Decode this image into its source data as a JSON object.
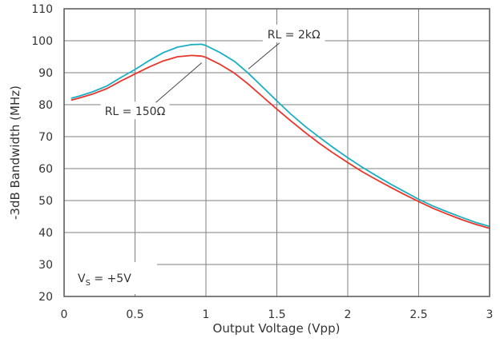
{
  "chart_data": {
    "type": "line",
    "title": "",
    "xlabel": "Output Voltage (Vpp)",
    "ylabel": "-3dB Bandwidth (MHz)",
    "xlim": [
      0,
      3
    ],
    "ylim": [
      20,
      110
    ],
    "xticks": [
      0,
      0.5,
      1,
      1.5,
      2,
      2.5,
      3
    ],
    "xtick_labels": [
      "0",
      "0.5",
      "1",
      "1.5",
      "2",
      "2.5",
      "3"
    ],
    "yticks": [
      20,
      30,
      40,
      50,
      60,
      70,
      80,
      90,
      100,
      110
    ],
    "ytick_labels": [
      "20",
      "30",
      "40",
      "50",
      "60",
      "70",
      "80",
      "90",
      "100",
      "110"
    ],
    "grid": true,
    "series": [
      {
        "name": "RL = 2kΩ",
        "color": "#1aaec2",
        "x": [
          0.05,
          0.1,
          0.2,
          0.3,
          0.4,
          0.5,
          0.6,
          0.7,
          0.8,
          0.9,
          0.97,
          1.0,
          1.1,
          1.2,
          1.3,
          1.4,
          1.5,
          1.6,
          1.7,
          1.8,
          1.9,
          2.0,
          2.1,
          2.2,
          2.3,
          2.4,
          2.5,
          2.6,
          2.7,
          2.8,
          2.9,
          3.0
        ],
        "y": [
          82,
          82.6,
          84,
          85.8,
          88.5,
          91,
          93.8,
          96.3,
          98,
          98.8,
          98.9,
          98.5,
          96.3,
          93.6,
          89.8,
          85.5,
          81.2,
          77,
          73.2,
          69.8,
          66.5,
          63.4,
          60.5,
          57.8,
          55.2,
          52.8,
          50.4,
          48.3,
          46.5,
          44.8,
          43.2,
          41.9
        ]
      },
      {
        "name": "RL = 150Ω",
        "color": "#e8352a",
        "x": [
          0.05,
          0.1,
          0.2,
          0.3,
          0.4,
          0.5,
          0.6,
          0.7,
          0.8,
          0.9,
          0.97,
          1.0,
          1.1,
          1.2,
          1.3,
          1.4,
          1.5,
          1.6,
          1.7,
          1.8,
          1.9,
          2.0,
          2.1,
          2.2,
          2.3,
          2.4,
          2.5,
          2.6,
          2.7,
          2.8,
          2.9,
          3.0
        ],
        "y": [
          81.4,
          82,
          83.3,
          85,
          87.4,
          89.6,
          91.8,
          93.7,
          95,
          95.4,
          95.2,
          94.8,
          92.6,
          89.9,
          86.4,
          82.5,
          78.6,
          74.9,
          71.3,
          67.9,
          64.8,
          61.9,
          59.1,
          56.6,
          54.2,
          51.9,
          49.7,
          47.6,
          45.8,
          44.1,
          42.6,
          41.3
        ]
      }
    ],
    "annotations": [
      {
        "text": "RL = 2kΩ",
        "x": 1.62,
        "y": 101.8,
        "point_x": 1.3,
        "point_y": 91.2
      },
      {
        "text": "RL = 150Ω",
        "x": 0.5,
        "y": 77.7,
        "point_x": 0.97,
        "point_y": 93.1
      }
    ],
    "conditions": {
      "main": "V",
      "subscript": "S",
      "rest": " = +5V"
    }
  }
}
